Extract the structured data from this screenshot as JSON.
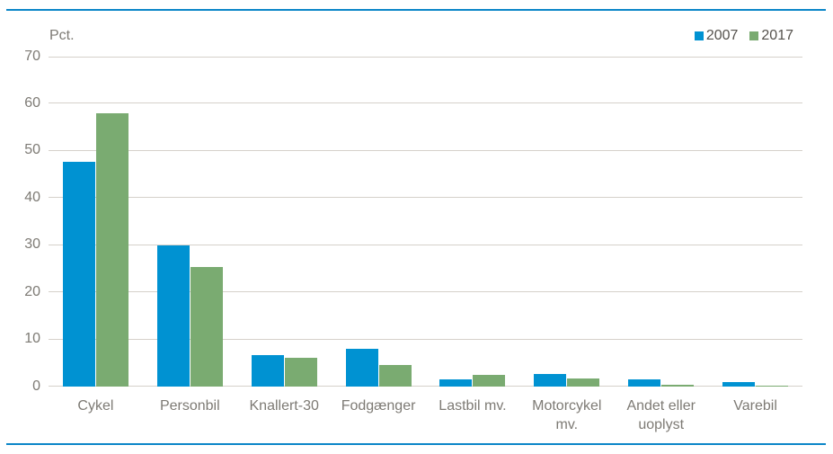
{
  "page": {
    "accent_line_color": "#0b86c8",
    "background_color": "#ffffff"
  },
  "chart_data": {
    "type": "bar",
    "title": "",
    "xlabel": "",
    "ylabel": "Pct.",
    "categories": [
      "Cykel",
      "Personbil",
      "Knallert-30",
      "Fodgænger",
      "Lastbil mv.",
      "Motorcykel\nmv.",
      "Andet eller\nuoplyst",
      "Varebil"
    ],
    "series": [
      {
        "name": "2007",
        "color": "#0092d2",
        "values": [
          47.6,
          29.9,
          6.7,
          8.0,
          1.6,
          2.6,
          1.5,
          1.0
        ]
      },
      {
        "name": "2017",
        "color": "#7aab71",
        "values": [
          58.0,
          25.4,
          6.2,
          4.5,
          2.4,
          1.7,
          0.3,
          0.2
        ]
      }
    ],
    "ylim": [
      0,
      70
    ],
    "yticks": [
      0,
      10,
      20,
      30,
      40,
      50,
      60,
      70
    ],
    "grid": true,
    "legend_position": "top-right",
    "gridline_color": "#d5d1ca",
    "axis_text_color": "#7d7a74",
    "legend_text_color": "#55524d"
  }
}
